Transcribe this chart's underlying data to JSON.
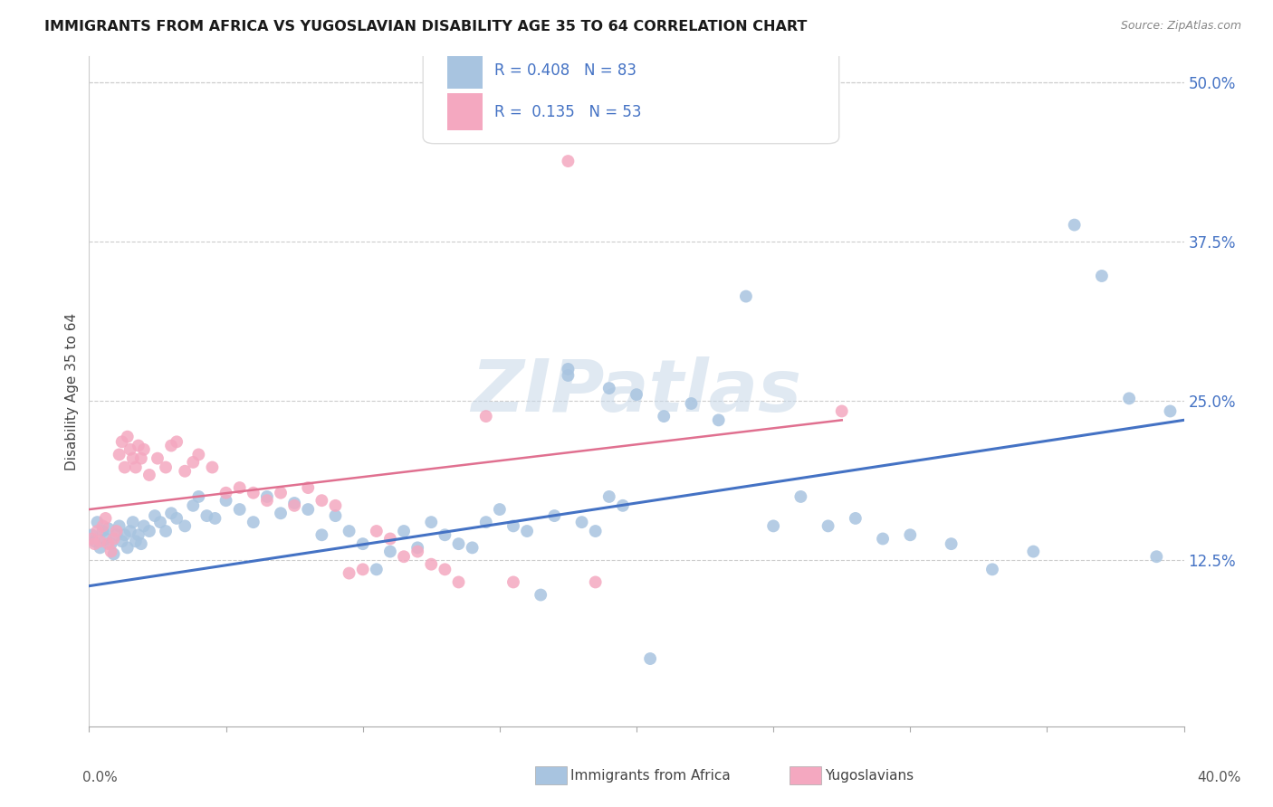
{
  "title": "IMMIGRANTS FROM AFRICA VS YUGOSLAVIAN DISABILITY AGE 35 TO 64 CORRELATION CHART",
  "source": "Source: ZipAtlas.com",
  "ylabel": "Disability Age 35 to 64",
  "yticks": [
    0.0,
    0.125,
    0.25,
    0.375,
    0.5
  ],
  "ytick_labels": [
    "",
    "12.5%",
    "25.0%",
    "37.5%",
    "50.0%"
  ],
  "xlim": [
    0.0,
    0.4
  ],
  "ylim": [
    -0.005,
    0.52
  ],
  "legend_label_blue": "Immigrants from Africa",
  "legend_label_pink": "Yugoslavians",
  "R_blue": 0.408,
  "N_blue": 83,
  "R_pink": 0.135,
  "N_pink": 53,
  "blue_color": "#a8c4e0",
  "pink_color": "#f4a8c0",
  "line_blue": "#4472c4",
  "line_pink": "#e07090",
  "watermark": "ZIPatlas",
  "blue_line_x0": 0.0,
  "blue_line_x1": 0.4,
  "blue_line_y0": 0.105,
  "blue_line_y1": 0.235,
  "pink_line_x0": 0.0,
  "pink_line_x1": 0.275,
  "pink_line_y0": 0.165,
  "pink_line_y1": 0.235,
  "blue_points_x": [
    0.001,
    0.002,
    0.003,
    0.004,
    0.005,
    0.006,
    0.007,
    0.008,
    0.009,
    0.01,
    0.011,
    0.012,
    0.013,
    0.014,
    0.015,
    0.016,
    0.017,
    0.018,
    0.019,
    0.02,
    0.022,
    0.024,
    0.026,
    0.028,
    0.03,
    0.032,
    0.035,
    0.038,
    0.04,
    0.043,
    0.046,
    0.05,
    0.055,
    0.06,
    0.065,
    0.07,
    0.075,
    0.08,
    0.085,
    0.09,
    0.095,
    0.1,
    0.105,
    0.11,
    0.115,
    0.12,
    0.125,
    0.13,
    0.135,
    0.14,
    0.145,
    0.15,
    0.155,
    0.16,
    0.165,
    0.17,
    0.175,
    0.18,
    0.185,
    0.19,
    0.195,
    0.2,
    0.21,
    0.22,
    0.23,
    0.24,
    0.25,
    0.26,
    0.27,
    0.28,
    0.29,
    0.3,
    0.315,
    0.33,
    0.345,
    0.36,
    0.37,
    0.38,
    0.39,
    0.395,
    0.175,
    0.19,
    0.205
  ],
  "blue_points_y": [
    0.145,
    0.14,
    0.155,
    0.135,
    0.148,
    0.142,
    0.15,
    0.138,
    0.13,
    0.145,
    0.152,
    0.14,
    0.145,
    0.135,
    0.148,
    0.155,
    0.14,
    0.145,
    0.138,
    0.152,
    0.148,
    0.16,
    0.155,
    0.148,
    0.162,
    0.158,
    0.152,
    0.168,
    0.175,
    0.16,
    0.158,
    0.172,
    0.165,
    0.155,
    0.175,
    0.162,
    0.17,
    0.165,
    0.145,
    0.16,
    0.148,
    0.138,
    0.118,
    0.132,
    0.148,
    0.135,
    0.155,
    0.145,
    0.138,
    0.135,
    0.155,
    0.165,
    0.152,
    0.148,
    0.098,
    0.16,
    0.27,
    0.155,
    0.148,
    0.175,
    0.168,
    0.255,
    0.238,
    0.248,
    0.235,
    0.332,
    0.152,
    0.175,
    0.152,
    0.158,
    0.142,
    0.145,
    0.138,
    0.118,
    0.132,
    0.388,
    0.348,
    0.252,
    0.128,
    0.242,
    0.275,
    0.26,
    0.048
  ],
  "pink_points_x": [
    0.001,
    0.002,
    0.003,
    0.004,
    0.005,
    0.006,
    0.007,
    0.008,
    0.009,
    0.01,
    0.011,
    0.012,
    0.013,
    0.014,
    0.015,
    0.016,
    0.017,
    0.018,
    0.019,
    0.02,
    0.022,
    0.025,
    0.028,
    0.03,
    0.032,
    0.035,
    0.038,
    0.04,
    0.045,
    0.05,
    0.055,
    0.06,
    0.065,
    0.07,
    0.075,
    0.08,
    0.085,
    0.09,
    0.095,
    0.1,
    0.105,
    0.11,
    0.115,
    0.12,
    0.125,
    0.13,
    0.135,
    0.145,
    0.155,
    0.165,
    0.175,
    0.185,
    0.275
  ],
  "pink_points_y": [
    0.142,
    0.138,
    0.148,
    0.14,
    0.152,
    0.158,
    0.138,
    0.132,
    0.142,
    0.148,
    0.208,
    0.218,
    0.198,
    0.222,
    0.212,
    0.205,
    0.198,
    0.215,
    0.205,
    0.212,
    0.192,
    0.205,
    0.198,
    0.215,
    0.218,
    0.195,
    0.202,
    0.208,
    0.198,
    0.178,
    0.182,
    0.178,
    0.172,
    0.178,
    0.168,
    0.182,
    0.172,
    0.168,
    0.115,
    0.118,
    0.148,
    0.142,
    0.128,
    0.132,
    0.122,
    0.118,
    0.108,
    0.238,
    0.108,
    0.492,
    0.438,
    0.108,
    0.242
  ]
}
